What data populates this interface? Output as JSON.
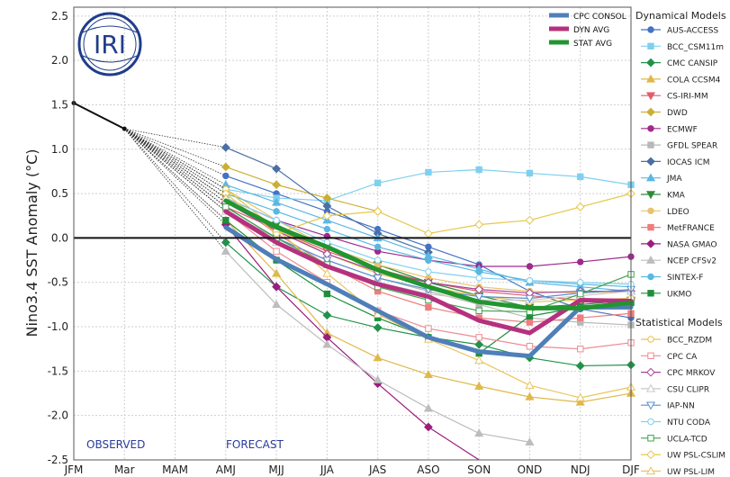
{
  "chart_data": {
    "type": "line",
    "categories": [
      "JFM",
      "Mar",
      "MAM",
      "AMJ",
      "MJJ",
      "JJA",
      "JAS",
      "ASO",
      "SON",
      "OND",
      "NDJ",
      "DJF"
    ],
    "ylabel": "Nino3.4 SST Anomaly (°C)",
    "ylim": [
      -2.5,
      2.6
    ],
    "yticks": [
      "-2.5",
      "-2.0",
      "-1.5",
      "-1.0",
      "-0.5",
      "0.0",
      "0.5",
      "1.0",
      "1.5",
      "2.0",
      "2.5"
    ],
    "grid": true,
    "logo_text": "IRI",
    "observed_label": "OBSERVED",
    "forecast_label": "FORECAST",
    "observed": [
      1.52,
      1.23
    ],
    "summary_series": [
      {
        "name": "CPC CONSOL",
        "color": "#4f7fb8",
        "values": [
          null,
          null,
          null,
          0.12,
          -0.24,
          -0.52,
          -0.82,
          -1.12,
          -1.28,
          -1.33,
          -0.78,
          -0.78
        ]
      },
      {
        "name": "DYN AVG",
        "color": "#b5317e",
        "values": [
          null,
          null,
          null,
          0.3,
          -0.05,
          -0.32,
          -0.52,
          -0.66,
          -0.93,
          -1.07,
          -0.7,
          -0.71
        ]
      },
      {
        "name": "STAT AVG",
        "color": "#21952f",
        "values": [
          null,
          null,
          null,
          0.42,
          0.12,
          -0.1,
          -0.36,
          -0.55,
          -0.72,
          -0.79,
          -0.79,
          -0.73
        ]
      }
    ],
    "dynamical_title": "Dynamical Models",
    "dynamical_models": [
      {
        "name": "AUS-ACCESS",
        "color": "#4472c4",
        "marker": "circle",
        "values": [
          null,
          null,
          null,
          0.7,
          0.5,
          0.3,
          0.1,
          -0.1,
          -0.3,
          -0.6,
          -0.8,
          -0.9
        ]
      },
      {
        "name": "BCC_CSM11m",
        "color": "#7fd0ee",
        "marker": "square",
        "values": [
          null,
          null,
          null,
          0.55,
          0.45,
          0.42,
          0.62,
          0.74,
          0.77,
          0.73,
          0.69,
          0.6
        ]
      },
      {
        "name": "CMC CANSIP",
        "color": "#22914a",
        "marker": "diamond",
        "values": [
          null,
          null,
          null,
          -0.05,
          -0.55,
          -0.87,
          -1.01,
          -1.12,
          -1.2,
          -1.35,
          -1.44,
          -1.43
        ]
      },
      {
        "name": "COLA CCSM4",
        "color": "#e0b94a",
        "marker": "triangle-up",
        "values": [
          null,
          null,
          null,
          0.2,
          -0.4,
          -1.07,
          -1.35,
          -1.54,
          -1.67,
          -1.79,
          -1.85,
          -1.75
        ]
      },
      {
        "name": "CS-IRI-MM",
        "color": "#e35b6d",
        "marker": "triangle-down",
        "values": [
          null,
          null,
          null,
          0.35,
          0.1,
          -0.15,
          -0.35,
          -0.5,
          -0.6,
          -0.65,
          -0.7,
          -0.72
        ]
      },
      {
        "name": "DWD",
        "color": "#c9b035",
        "marker": "diamond",
        "values": [
          null,
          null,
          null,
          0.8,
          0.6,
          0.45,
          0.3,
          null,
          null,
          null,
          null,
          null
        ]
      },
      {
        "name": "ECMWF",
        "color": "#9e2a8c",
        "marker": "circle",
        "values": [
          null,
          null,
          null,
          0.45,
          0.2,
          0.02,
          -0.15,
          -0.25,
          -0.32,
          -0.32,
          -0.27,
          -0.21
        ]
      },
      {
        "name": "GFDL SPEAR",
        "color": "#b8b8b8",
        "marker": "square",
        "values": [
          null,
          null,
          null,
          0.3,
          0.0,
          -0.25,
          -0.45,
          -0.6,
          -0.75,
          -0.9,
          -0.95,
          -0.98
        ]
      },
      {
        "name": "IOCAS ICM",
        "color": "#4a6fa5",
        "marker": "diamond",
        "values": [
          null,
          null,
          null,
          1.02,
          0.78,
          0.36,
          0.05,
          -0.16,
          null,
          null,
          null,
          null
        ]
      },
      {
        "name": "JMA",
        "color": "#5cb7e6",
        "marker": "triangle-up",
        "values": [
          null,
          null,
          null,
          0.6,
          0.4,
          0.2,
          0.0,
          -0.2,
          -0.35,
          -0.5,
          -0.55,
          -0.6
        ]
      },
      {
        "name": "KMA",
        "color": "#2e8b3a",
        "marker": "triangle-down",
        "values": [
          null,
          null,
          null,
          0.4,
          0.15,
          -0.1,
          -0.3,
          -0.5,
          -0.65,
          -0.78,
          -0.75,
          -0.7
        ]
      },
      {
        "name": "LDEO",
        "color": "#e8c36b",
        "marker": "circle",
        "values": [
          null,
          null,
          null,
          0.55,
          0.2,
          -0.1,
          -0.3,
          -0.45,
          -0.55,
          -0.6,
          -0.62,
          -0.6
        ]
      },
      {
        "name": "MetFRANCE",
        "color": "#ee7d7d",
        "marker": "square",
        "values": [
          null,
          null,
          null,
          0.45,
          0.05,
          -0.3,
          -0.6,
          -0.78,
          -0.9,
          -0.95,
          -0.9,
          -0.85
        ]
      },
      {
        "name": "NASA GMAO",
        "color": "#9b1d7c",
        "marker": "diamond",
        "values": [
          null,
          null,
          null,
          0.15,
          -0.55,
          -1.12,
          -1.64,
          -2.13,
          -2.5,
          null,
          null,
          null
        ]
      },
      {
        "name": "NCEP CFSv2",
        "color": "#bdbdbd",
        "marker": "triangle-up",
        "values": [
          null,
          null,
          null,
          -0.15,
          -0.75,
          -1.2,
          -1.6,
          -1.92,
          -2.2,
          -2.3,
          null,
          null
        ]
      },
      {
        "name": "SINTEX-F",
        "color": "#58b8e0",
        "marker": "circle",
        "values": [
          null,
          null,
          null,
          0.5,
          0.3,
          0.1,
          -0.1,
          -0.25,
          -0.38,
          -0.48,
          -0.52,
          -0.55
        ]
      },
      {
        "name": "UKMO",
        "color": "#1f8e3c",
        "marker": "square",
        "values": [
          null,
          null,
          null,
          0.2,
          -0.25,
          -0.63,
          -0.9,
          -1.12,
          -1.3,
          -0.88,
          -0.78,
          -0.73
        ]
      }
    ],
    "statistical_title": "Statistical Models",
    "statistical_models": [
      {
        "name": "BCC_RZDM",
        "color": "#e6c24e",
        "marker": "circle",
        "values": [
          null,
          null,
          null,
          0.55,
          0.1,
          -0.18,
          -0.4,
          -0.55,
          -0.65,
          -0.72,
          -0.7,
          -0.68
        ]
      },
      {
        "name": "CPC CA",
        "color": "#ee8a92",
        "marker": "square",
        "values": [
          null,
          null,
          null,
          0.3,
          -0.15,
          -0.5,
          -0.82,
          -1.02,
          -1.12,
          -1.22,
          -1.25,
          -1.18
        ]
      },
      {
        "name": "CPC MRKOV",
        "color": "#a0459c",
        "marker": "diamond",
        "values": [
          null,
          null,
          null,
          0.4,
          0.08,
          -0.18,
          -0.38,
          -0.5,
          -0.58,
          -0.62,
          -0.6,
          -0.6
        ]
      },
      {
        "name": "CSU CLIPR",
        "color": "#c9c9c9",
        "marker": "triangle-up",
        "values": [
          null,
          null,
          null,
          0.3,
          -0.05,
          -0.3,
          -0.5,
          -0.63,
          -0.7,
          -0.7,
          -0.65,
          -0.6
        ]
      },
      {
        "name": "IAP-NN",
        "color": "#5b8fd1",
        "marker": "triangle-down",
        "values": [
          null,
          null,
          null,
          0.35,
          0.0,
          -0.25,
          -0.45,
          -0.58,
          -0.66,
          -0.68,
          -0.62,
          -0.58
        ]
      },
      {
        "name": "NTU CODA",
        "color": "#7fd0ee",
        "marker": "circle",
        "values": [
          null,
          null,
          null,
          0.45,
          0.2,
          -0.05,
          -0.25,
          -0.38,
          -0.45,
          -0.48,
          -0.5,
          -0.52
        ]
      },
      {
        "name": "UCLA-TCD",
        "color": "#3ca34a",
        "marker": "square",
        "values": [
          null,
          null,
          null,
          0.35,
          0.0,
          -0.3,
          -0.55,
          -0.7,
          -0.82,
          -0.83,
          -0.63,
          -0.41
        ]
      },
      {
        "name": "UW PSL-CSLIM",
        "color": "#e5c84a",
        "marker": "diamond",
        "values": [
          null,
          null,
          null,
          0.5,
          0.05,
          0.25,
          0.3,
          0.05,
          0.15,
          0.2,
          0.35,
          0.5
        ]
      },
      {
        "name": "UW PSL-LIM",
        "color": "#e9c55e",
        "marker": "triangle-up",
        "values": [
          null,
          null,
          null,
          0.45,
          0.1,
          -0.4,
          -0.86,
          -1.14,
          -1.38,
          -1.66,
          -1.8,
          -1.68
        ]
      }
    ]
  }
}
